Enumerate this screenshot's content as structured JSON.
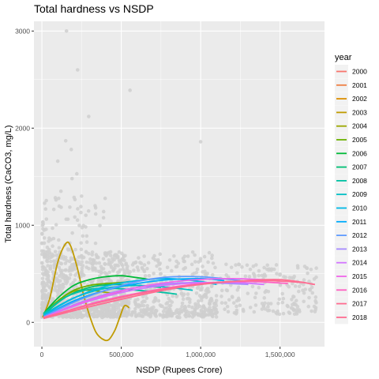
{
  "chart_data": {
    "type": "scatter",
    "title": "Total hardness vs NSDP",
    "xlabel": "NSDP (Rupees Crore)",
    "ylabel": "Total hardness (CaCO3, mg/L)",
    "xlim": [
      -50000,
      1780000
    ],
    "ylim": [
      -250,
      3100
    ],
    "x_ticks": [
      0,
      500000,
      1000000,
      1500000
    ],
    "x_tick_labels": [
      "0",
      "500,000",
      "1,000,000",
      "1,500,000"
    ],
    "y_ticks": [
      0,
      1000,
      2000,
      3000
    ],
    "y_tick_labels": [
      "0",
      "1000",
      "2000",
      "3000"
    ],
    "grid": true,
    "legend_position": "right",
    "legend": {
      "title": "year",
      "entries": [
        "2000",
        "2001",
        "2002",
        "2003",
        "2004",
        "2005",
        "2006",
        "2007",
        "2008",
        "2009",
        "2010",
        "2011",
        "2012",
        "2013",
        "2014",
        "2015",
        "2016",
        "2017",
        "2018"
      ],
      "colors": [
        "#F8766D",
        "#EE8043",
        "#DB8E00",
        "#C09B00",
        "#9CA700",
        "#6BB100",
        "#00BA38",
        "#00BF74",
        "#00C1A3",
        "#00BFC4",
        "#00B8E5",
        "#00ACFC",
        "#619CFF",
        "#A58AFF",
        "#D376FF",
        "#F066EA",
        "#FF61C3",
        "#FF6C91",
        "#FF6C91"
      ]
    },
    "scatter": {
      "name": "observations",
      "color": "#cfcfcf",
      "outliers": [
        [
          155000,
          3000
        ],
        [
          225000,
          2600
        ],
        [
          295000,
          2120
        ],
        [
          555000,
          2390
        ],
        [
          150000,
          1870
        ],
        [
          185000,
          1780
        ],
        [
          100000,
          1660
        ],
        [
          190000,
          1480
        ],
        [
          220000,
          1530
        ],
        [
          120000,
          1350
        ],
        [
          1000000,
          1860
        ]
      ]
    },
    "series": [
      {
        "name": "2003",
        "color": "#C09B00",
        "x": [
          5000,
          50000,
          100000,
          150000,
          180000,
          220000,
          260000,
          300000,
          340000,
          380000,
          420000,
          460000,
          490000,
          520000,
          550000
        ],
        "y": [
          50,
          250,
          620,
          810,
          790,
          580,
          300,
          70,
          -100,
          -170,
          -180,
          -80,
          50,
          170,
          150
        ]
      },
      {
        "name": "2004",
        "color": "#9CA700",
        "x": [
          10000,
          100000,
          200000,
          300000,
          400000,
          450000,
          500000
        ],
        "y": [
          80,
          220,
          320,
          330,
          310,
          300,
          320
        ]
      },
      {
        "name": "2005",
        "color": "#6BB100",
        "x": [
          10000,
          100000,
          200000,
          300000,
          400000,
          500000,
          550000
        ],
        "y": [
          80,
          220,
          330,
          380,
          400,
          410,
          420
        ]
      },
      {
        "name": "2006",
        "color": "#00BA38",
        "x": [
          10000,
          100000,
          200000,
          300000,
          400000,
          500000,
          600000,
          680000
        ],
        "y": [
          90,
          250,
          380,
          440,
          470,
          480,
          460,
          440
        ]
      },
      {
        "name": "2007",
        "color": "#00BF74",
        "x": [
          10000,
          150000,
          300000,
          450000,
          600000,
          750000
        ],
        "y": [
          80,
          260,
          360,
          390,
          380,
          360
        ]
      },
      {
        "name": "2008",
        "color": "#00C1A3",
        "x": [
          10000,
          150000,
          300000,
          450000,
          600000,
          750000,
          850000
        ],
        "y": [
          90,
          260,
          340,
          350,
          330,
          310,
          290
        ]
      },
      {
        "name": "2009",
        "color": "#00BFC4",
        "x": [
          10000,
          200000,
          400000,
          600000,
          800000,
          950000
        ],
        "y": [
          80,
          250,
          350,
          380,
          360,
          330
        ]
      },
      {
        "name": "2010",
        "color": "#00B8E5",
        "x": [
          10000,
          200000,
          400000,
          600000,
          800000,
          1000000,
          1100000
        ],
        "y": [
          70,
          250,
          370,
          430,
          450,
          420,
          390
        ]
      },
      {
        "name": "2011",
        "color": "#00ACFC",
        "x": [
          10000,
          200000,
          400000,
          600000,
          800000,
          1000000,
          1150000
        ],
        "y": [
          60,
          220,
          330,
          400,
          440,
          450,
          430
        ]
      },
      {
        "name": "2012",
        "color": "#619CFF",
        "x": [
          10000,
          250000,
          500000,
          750000,
          1000000,
          1250000
        ],
        "y": [
          60,
          240,
          380,
          460,
          470,
          430
        ]
      },
      {
        "name": "2013",
        "color": "#A58AFF",
        "x": [
          10000,
          250000,
          500000,
          750000,
          1000000,
          1300000
        ],
        "y": [
          50,
          210,
          330,
          390,
          410,
          390
        ]
      },
      {
        "name": "2014",
        "color": "#D376FF",
        "x": [
          10000,
          300000,
          600000,
          900000,
          1200000,
          1400000
        ],
        "y": [
          50,
          220,
          340,
          400,
          410,
          390
        ]
      },
      {
        "name": "2015",
        "color": "#F066EA",
        "x": [
          10000,
          300000,
          600000,
          900000,
          1200000,
          1500000
        ],
        "y": [
          50,
          230,
          360,
          430,
          450,
          430
        ]
      },
      {
        "name": "2016",
        "color": "#FF61C3",
        "x": [
          10000,
          350000,
          700000,
          1000000,
          1300000,
          1550000
        ],
        "y": [
          40,
          210,
          330,
          400,
          420,
          400
        ]
      },
      {
        "name": "2017",
        "color": "#FF6C91",
        "x": [
          10000,
          400000,
          800000,
          1100000,
          1400000,
          1650000
        ],
        "y": [
          40,
          200,
          340,
          410,
          430,
          410
        ]
      },
      {
        "name": "2018",
        "color": "#FF6C91",
        "x": [
          10000,
          400000,
          800000,
          1200000,
          1500000,
          1720000
        ],
        "y": [
          50,
          220,
          350,
          420,
          440,
          390
        ]
      }
    ]
  }
}
